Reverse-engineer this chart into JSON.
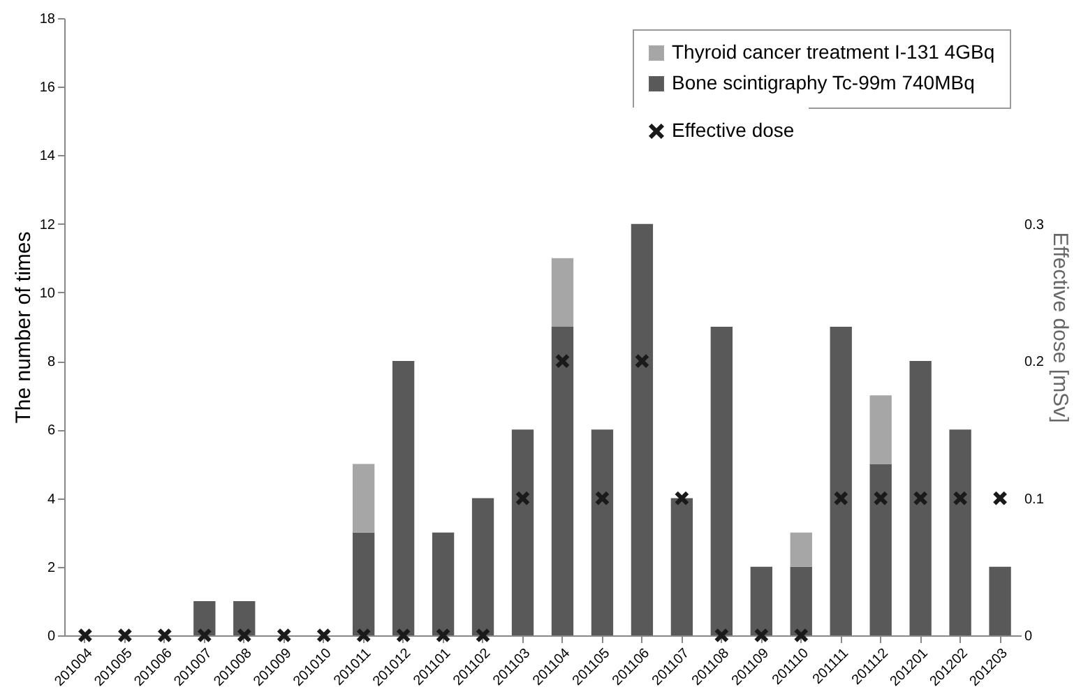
{
  "chart_data": {
    "type": "bar",
    "stacked": true,
    "categories": [
      "201004",
      "201005",
      "201006",
      "201007",
      "201008",
      "201009",
      "201010",
      "201011",
      "201012",
      "201101",
      "201102",
      "201103",
      "201104",
      "201105",
      "201106",
      "201107",
      "201108",
      "201109",
      "201110",
      "201111",
      "201112",
      "201201",
      "201202",
      "201203"
    ],
    "series": [
      {
        "name": "Bone scintigraphy Tc-99m 740MBq",
        "color": "#595959",
        "values": [
          0,
          0,
          0,
          1,
          1,
          0,
          0,
          3,
          8,
          3,
          4,
          6,
          9,
          6,
          12,
          4,
          9,
          2,
          2,
          9,
          5,
          8,
          6,
          2
        ]
      },
      {
        "name": "Thyroid cancer treatment I-131 4GBq",
        "color": "#a6a6a6",
        "values": [
          null,
          null,
          null,
          null,
          null,
          null,
          null,
          2,
          null,
          null,
          null,
          null,
          2,
          null,
          null,
          null,
          null,
          null,
          1,
          null,
          2,
          null,
          null,
          null
        ]
      },
      {
        "name": "Effective dose",
        "type": "scatter",
        "axis": "y2",
        "color": "#1a1a1a",
        "values": [
          0,
          0,
          0,
          0,
          0,
          0,
          0,
          0,
          0,
          0,
          0,
          0.1,
          0.2,
          0.1,
          0.2,
          0.1,
          0,
          0,
          0,
          0.1,
          0.1,
          0.1,
          0.1,
          0.1
        ]
      }
    ],
    "ylabel": "The number of times",
    "y2label": "Effective dose [mSv]",
    "ylim": [
      0,
      18
    ],
    "yticks": [
      0,
      2,
      4,
      6,
      8,
      10,
      12,
      14,
      16,
      18
    ],
    "y2lim": [
      0,
      0.45
    ],
    "y2ticks": [
      0,
      0.1,
      0.2,
      0.3
    ],
    "marker": "cross",
    "legend": "top right",
    "grid": false
  }
}
